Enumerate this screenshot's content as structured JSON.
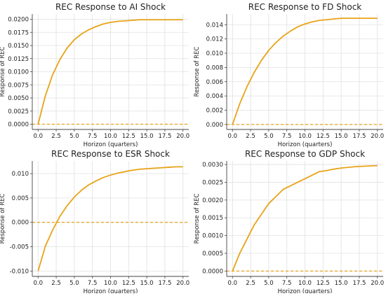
{
  "figure": {
    "colors": {
      "line": "#E8A317",
      "zero_line": "#E8A317",
      "grid": "#e0e0e0",
      "axis": "#444444",
      "text": "#222222"
    }
  },
  "chart_data": [
    {
      "type": "line",
      "title": "REC Response to AI Shock",
      "xlabel": "Horizon (quarters)",
      "ylabel": "Response of REC",
      "xlim": [
        -0.8,
        20.8
      ],
      "ylim": [
        -0.001,
        0.021
      ],
      "xticks": [
        0.0,
        2.5,
        5.0,
        7.5,
        10.0,
        12.5,
        15.0,
        17.5,
        20.0
      ],
      "xtick_labels": [
        "0.0",
        "2.5",
        "5.0",
        "7.5",
        "10.0",
        "12.5",
        "15.0",
        "17.5",
        "20.0"
      ],
      "yticks": [
        0.0,
        0.0025,
        0.005,
        0.0075,
        0.01,
        0.0125,
        0.015,
        0.0175,
        0.02
      ],
      "ytick_labels": [
        "0.0000",
        "0.0025",
        "0.0050",
        "0.0075",
        "0.0100",
        "0.0125",
        "0.0150",
        "0.0175",
        "0.0200"
      ],
      "grid": true,
      "zero_line": {
        "y": 0,
        "style": "dashed"
      },
      "series": [
        {
          "x": [
            0,
            1,
            2,
            3,
            4,
            5,
            6,
            7,
            8,
            9,
            10,
            11,
            12,
            13,
            14,
            15,
            16,
            17,
            18,
            19,
            20
          ],
          "values": [
            0.0,
            0.0054,
            0.0094,
            0.0123,
            0.0145,
            0.0161,
            0.0172,
            0.018,
            0.0186,
            0.0191,
            0.0194,
            0.0196,
            0.0197,
            0.0198,
            0.0199,
            0.0199,
            0.0199,
            0.0199,
            0.0199,
            0.0199,
            0.0199
          ]
        }
      ]
    },
    {
      "type": "line",
      "title": "REC Response to FD Shock",
      "xlabel": "Horizon (quarters)",
      "ylabel": "Response of REC",
      "xlim": [
        -0.8,
        20.8
      ],
      "ylim": [
        -0.0007,
        0.0155
      ],
      "xticks": [
        0.0,
        2.5,
        5.0,
        7.5,
        10.0,
        12.5,
        15.0,
        17.5,
        20.0
      ],
      "xtick_labels": [
        "0.0",
        "2.5",
        "5.0",
        "7.5",
        "10.0",
        "12.5",
        "15.0",
        "17.5",
        "20.0"
      ],
      "yticks": [
        0.0,
        0.002,
        0.004,
        0.006,
        0.008,
        0.01,
        0.012,
        0.014
      ],
      "ytick_labels": [
        "0.000",
        "0.002",
        "0.004",
        "0.006",
        "0.008",
        "0.010",
        "0.012",
        "0.014"
      ],
      "grid": true,
      "zero_line": {
        "y": 0,
        "style": "dashed"
      },
      "series": [
        {
          "x": [
            0,
            1,
            2,
            3,
            4,
            5,
            6,
            7,
            8,
            9,
            10,
            11,
            12,
            13,
            14,
            15,
            16,
            17,
            18,
            19,
            20
          ],
          "values": [
            0.0,
            0.0029,
            0.0053,
            0.0073,
            0.009,
            0.0104,
            0.0115,
            0.0124,
            0.0131,
            0.0137,
            0.0141,
            0.0144,
            0.0146,
            0.0147,
            0.0148,
            0.0149,
            0.0149,
            0.0149,
            0.0149,
            0.0149,
            0.0149
          ]
        }
      ]
    },
    {
      "type": "line",
      "title": "REC Response to ESR Shock",
      "xlabel": "Horizon (quarters)",
      "ylabel": "Response of REC",
      "xlim": [
        -0.8,
        20.8
      ],
      "ylim": [
        -0.0111,
        0.0126
      ],
      "xticks": [
        0.0,
        2.5,
        5.0,
        7.5,
        10.0,
        12.5,
        15.0,
        17.5,
        20.0
      ],
      "xtick_labels": [
        "0.0",
        "2.5",
        "5.0",
        "7.5",
        "10.0",
        "12.5",
        "15.0",
        "17.5",
        "20.0"
      ],
      "yticks": [
        -0.01,
        -0.005,
        0.0,
        0.005,
        0.01
      ],
      "ytick_labels": [
        "-0.010",
        "-0.005",
        "0.000",
        "0.005",
        "0.010"
      ],
      "grid": true,
      "zero_line": {
        "y": 0,
        "style": "dashed"
      },
      "series": [
        {
          "x": [
            0,
            1,
            2,
            3,
            4,
            5,
            6,
            7,
            8,
            9,
            10,
            11,
            12,
            13,
            14,
            15,
            16,
            17,
            18,
            19,
            20
          ],
          "values": [
            -0.01,
            -0.0049,
            -0.0016,
            0.0012,
            0.0034,
            0.0052,
            0.0066,
            0.0077,
            0.0085,
            0.0092,
            0.0097,
            0.0101,
            0.0104,
            0.0107,
            0.0109,
            0.011,
            0.0111,
            0.0112,
            0.0113,
            0.0114,
            0.0114
          ]
        }
      ]
    },
    {
      "type": "line",
      "title": "REC Response to GDP Shock",
      "xlabel": "Horizon (quarters)",
      "ylabel": "Response of REC",
      "xlim": [
        -0.8,
        20.8
      ],
      "ylim": [
        -0.00015,
        0.0031
      ],
      "xticks": [
        0.0,
        2.5,
        5.0,
        7.5,
        10.0,
        12.5,
        15.0,
        17.5,
        20.0
      ],
      "xtick_labels": [
        "0.0",
        "2.5",
        "5.0",
        "7.5",
        "10.0",
        "12.5",
        "15.0",
        "17.5",
        "20.0"
      ],
      "yticks": [
        0.0,
        0.0005,
        0.001,
        0.0015,
        0.002,
        0.0025,
        0.003
      ],
      "ytick_labels": [
        "0.0000",
        "0.0005",
        "0.0010",
        "0.0015",
        "0.0020",
        "0.0025",
        "0.0030"
      ],
      "grid": true,
      "zero_line": {
        "y": 0,
        "style": "dashed"
      },
      "series": [
        {
          "x": [
            0,
            1,
            2,
            3,
            4,
            5,
            6,
            7,
            8,
            9,
            10,
            11,
            12,
            13,
            14,
            15,
            16,
            17,
            18,
            19,
            20
          ],
          "values": [
            0.0,
            0.0005,
            0.0009,
            0.0013,
            0.0016,
            0.0019,
            0.0021,
            0.0023,
            0.0024,
            0.0025,
            0.0026,
            0.0027,
            0.0028,
            0.00283,
            0.00287,
            0.0029,
            0.00292,
            0.00294,
            0.00295,
            0.00296,
            0.00297
          ]
        }
      ]
    }
  ]
}
